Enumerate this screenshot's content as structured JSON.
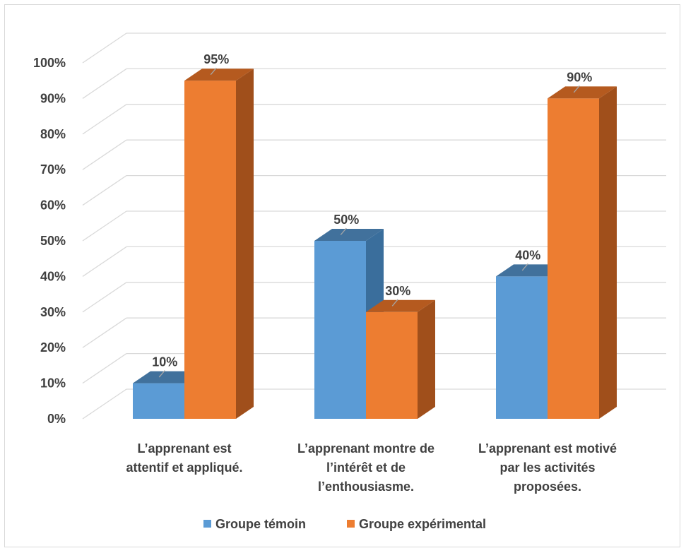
{
  "chart_data": {
    "type": "bar",
    "categories": [
      [
        "L’apprenant est",
        "attentif et appliqué."
      ],
      [
        "L’apprenant montre de",
        "l’intérêt et de",
        "l’enthousiasme."
      ],
      [
        "L’apprenant est motivé",
        "par les activités",
        "proposées."
      ]
    ],
    "series": [
      {
        "name": "Groupe témoin",
        "values": [
          10,
          50,
          40
        ],
        "labels": [
          "10%",
          "50%",
          "40%"
        ]
      },
      {
        "name": "Groupe expérimental",
        "values": [
          95,
          30,
          90
        ],
        "labels": [
          "95%",
          "30%",
          "90%"
        ]
      }
    ],
    "yticks": [
      "0%",
      "10%",
      "20%",
      "30%",
      "40%",
      "50%",
      "60%",
      "70%",
      "80%",
      "90%",
      "100%"
    ],
    "ylim": [
      0,
      100
    ],
    "grid": true,
    "legend_position": "bottom",
    "colors": {
      "series_front": [
        "#5B9BD5",
        "#ED7D31"
      ],
      "series_side": [
        "#3A6E9C",
        "#A04F1B"
      ],
      "series_top": [
        "#41719C",
        "#B55A1F"
      ],
      "grid": "#d9d9d9",
      "text": "#404040"
    }
  }
}
